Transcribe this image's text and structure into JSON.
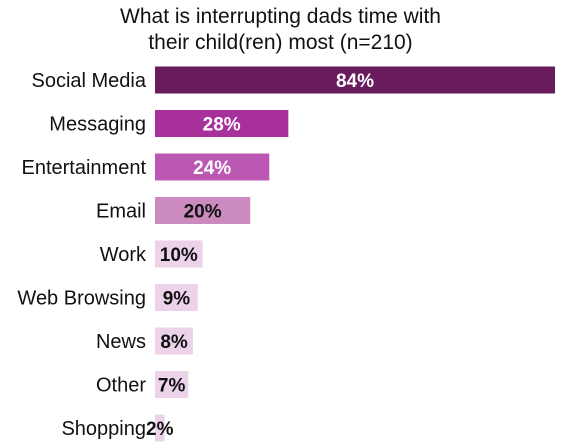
{
  "chart_data": {
    "type": "bar",
    "orientation": "horizontal",
    "title": "What is interrupting dads time with\ntheir child(ren) most (n=210)",
    "categories": [
      "Social Media",
      "Messaging",
      "Entertainment",
      "Email",
      "Work",
      "Web Browsing",
      "News",
      "Other",
      "Shopping"
    ],
    "values": [
      84,
      28,
      24,
      20,
      10,
      9,
      8,
      7,
      2
    ],
    "value_labels": [
      "84%",
      "28%",
      "24%",
      "20%",
      "10%",
      "9%",
      "8%",
      "7%",
      "2%"
    ],
    "bar_colors": [
      "#6a1b5e",
      "#a8309a",
      "#bb58b3",
      "#cc8bbe",
      "#ecd3ea",
      "#ecd3ea",
      "#ecd3ea",
      "#ecd3ea",
      "#ecd3ea"
    ],
    "value_label_colors": [
      "#ffffff",
      "#ffffff",
      "#ffffff",
      "#111111",
      "#111111",
      "#111111",
      "#111111",
      "#111111",
      "#111111"
    ],
    "xlim": [
      0,
      84
    ],
    "grid": false,
    "legend": "none"
  }
}
